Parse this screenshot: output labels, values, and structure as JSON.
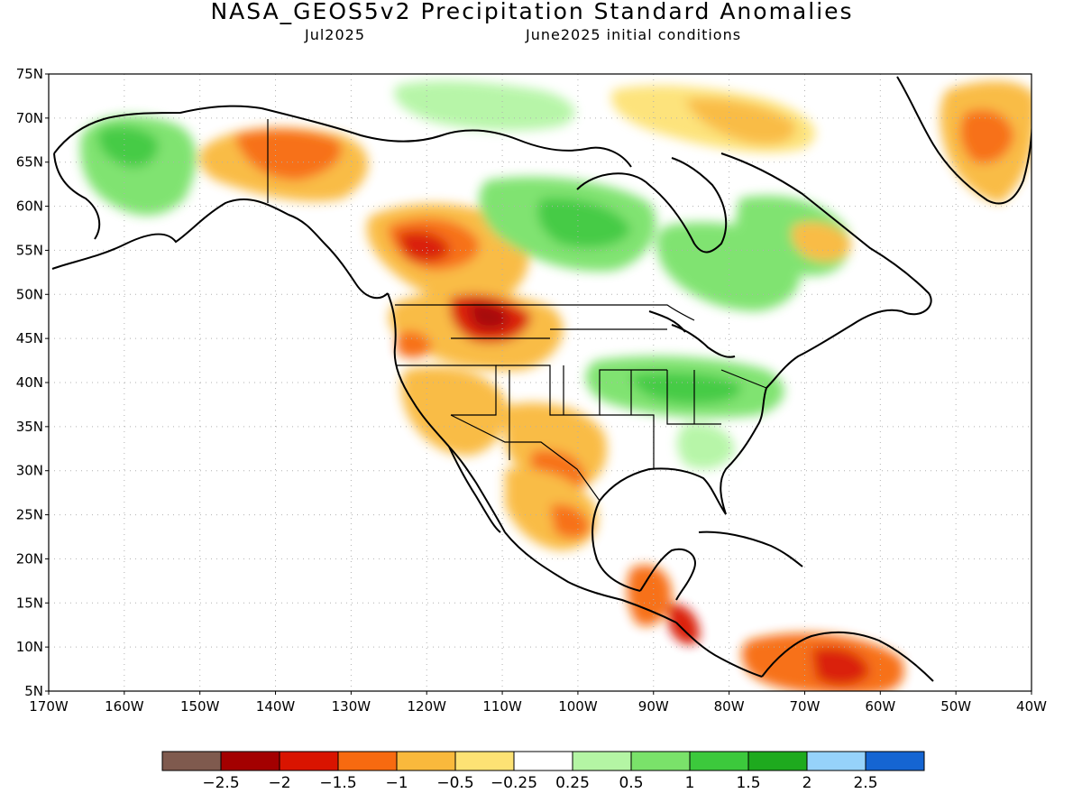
{
  "title": "NASA_GEOS5v2 Precipitation Standard Anomalies",
  "subtitle_left": "Jul2025",
  "subtitle_right": "June2025 initial conditions",
  "lat_labels": [
    "75N",
    "70N",
    "65N",
    "60N",
    "55N",
    "50N",
    "45N",
    "40N",
    "35N",
    "30N",
    "25N",
    "20N",
    "15N",
    "10N",
    "5N"
  ],
  "lon_labels": [
    "170W",
    "160W",
    "150W",
    "140W",
    "130W",
    "120W",
    "110W",
    "100W",
    "90W",
    "80W",
    "70W",
    "60W",
    "50W",
    "40W"
  ],
  "lat_values": [
    75,
    70,
    65,
    60,
    55,
    50,
    45,
    40,
    35,
    30,
    25,
    20,
    15,
    10,
    5
  ],
  "lon_values": [
    -170,
    -160,
    -150,
    -140,
    -130,
    -120,
    -110,
    -100,
    -90,
    -80,
    -70,
    -60,
    -50,
    -40
  ],
  "map_extent": {
    "lon_min": -170,
    "lon_max": -40,
    "lat_min": 5,
    "lat_max": 75
  },
  "colorbar": {
    "colors": [
      "#7f5a4e",
      "#a30000",
      "#d91400",
      "#f76a10",
      "#f9b93c",
      "#fde274",
      "#ffffff",
      "#b4f5a4",
      "#7ae26a",
      "#3cc93c",
      "#1eaa1e",
      "#96d2fa",
      "#1565d2"
    ],
    "labels": [
      "−2.5",
      "−2",
      "−1.5",
      "−1",
      "−0.5",
      "−0.25",
      "0.25",
      "0.5",
      "1",
      "1.5",
      "2",
      "2.5"
    ]
  }
}
